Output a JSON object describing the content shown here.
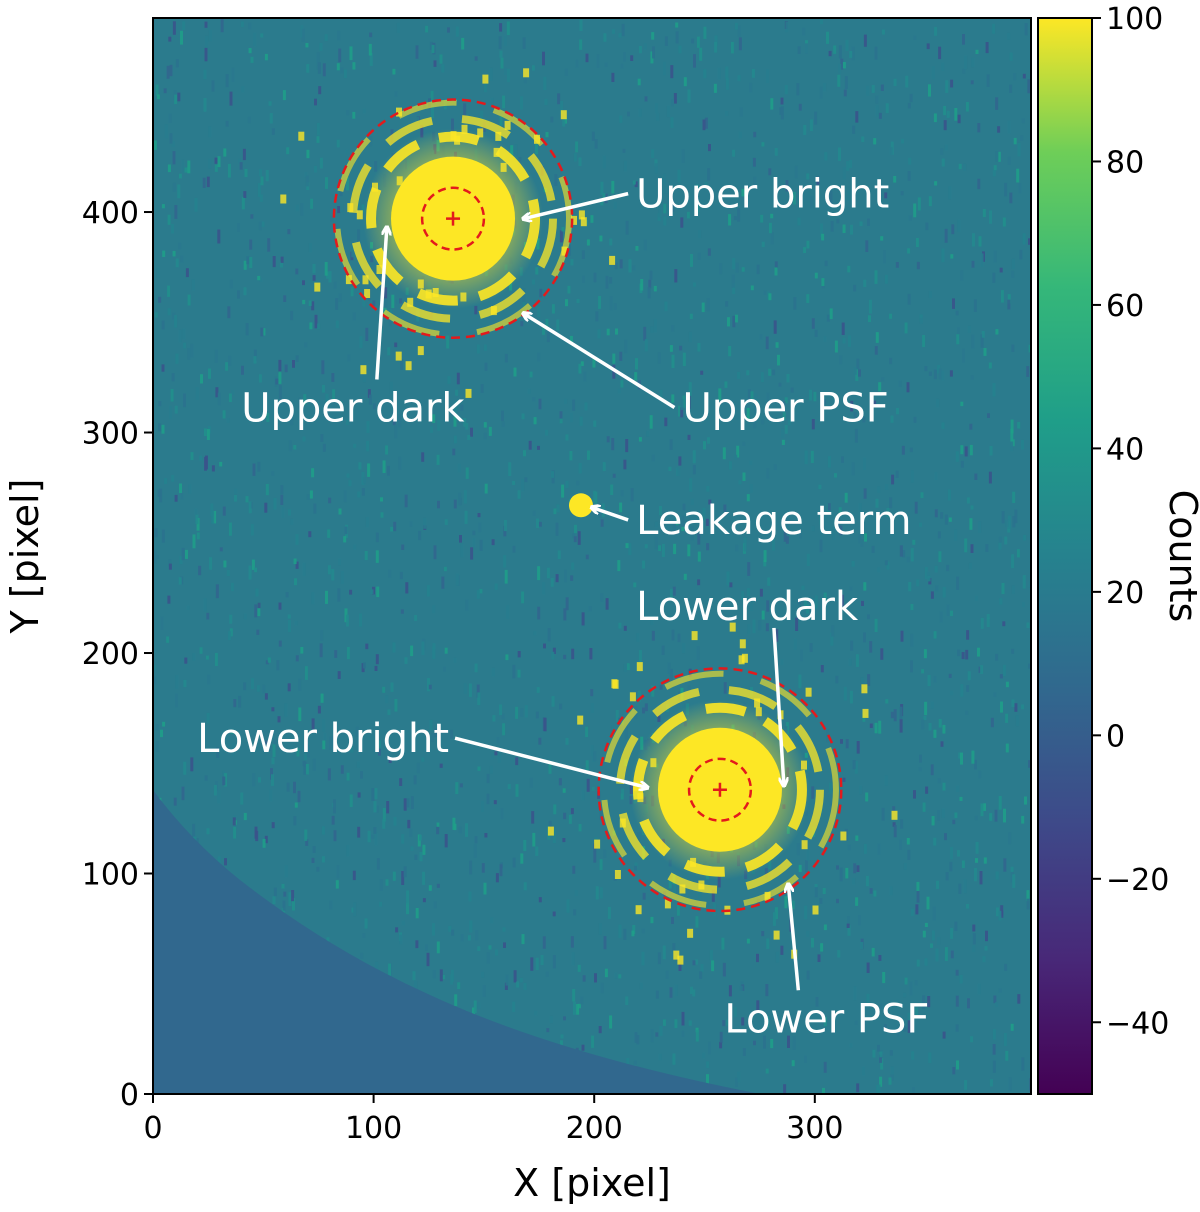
{
  "chart_data": {
    "type": "heatmap",
    "title": "",
    "xlabel": "X [pixel]",
    "ylabel": "Y [pixel]",
    "xlim": [
      0,
      398
    ],
    "ylim": [
      0,
      488
    ],
    "x_ticks": [
      0,
      100,
      200,
      300
    ],
    "y_ticks": [
      0,
      100,
      200,
      300,
      400
    ],
    "x_tick_labels": [
      "0",
      "100",
      "200",
      "300"
    ],
    "y_tick_labels": [
      "0",
      "100",
      "200",
      "300",
      "400"
    ],
    "grid": false,
    "colormap": "viridis",
    "colorbar": {
      "label": "Counts",
      "range": [
        -50,
        100
      ],
      "ticks": [
        -40,
        -20,
        0,
        20,
        40,
        60,
        80,
        100
      ],
      "tick_labels": [
        "−40",
        "−20",
        "0",
        "20",
        "40",
        "60",
        "80",
        "100"
      ]
    },
    "sources": [
      {
        "name": "upper",
        "center": [
          136,
          397
        ],
        "inner_radius": 14,
        "outer_radius": 54
      },
      {
        "name": "lower",
        "center": [
          257,
          138
        ],
        "inner_radius": 14,
        "outer_radius": 55
      },
      {
        "name": "leakage",
        "center": [
          194,
          267
        ]
      }
    ],
    "annotations": [
      {
        "text": "Upper bright",
        "text_at": [
          219,
          402
        ],
        "arrow_to": [
          168,
          397
        ]
      },
      {
        "text": "Upper PSF",
        "text_at": [
          240,
          305
        ],
        "arrow_to": [
          168,
          354
        ]
      },
      {
        "text": "Upper dark",
        "text_at": [
          40,
          305
        ],
        "arrow_to": [
          106,
          393
        ]
      },
      {
        "text": "Leakage term",
        "text_at": [
          219,
          254
        ],
        "arrow_to": [
          199,
          266
        ]
      },
      {
        "text": "Lower dark",
        "text_at": [
          219,
          215
        ],
        "arrow_to": [
          286,
          140
        ]
      },
      {
        "text": "Lower bright",
        "text_at": [
          20,
          155
        ],
        "arrow_to": [
          224,
          139
        ]
      },
      {
        "text": "Lower PSF",
        "text_at": [
          259,
          28
        ],
        "arrow_to": [
          288,
          95
        ]
      }
    ],
    "colors": {
      "circle": "#e31a1c",
      "annotation": "#ffffff",
      "background_masked": "#31688e",
      "saturated": "#fde725"
    }
  }
}
